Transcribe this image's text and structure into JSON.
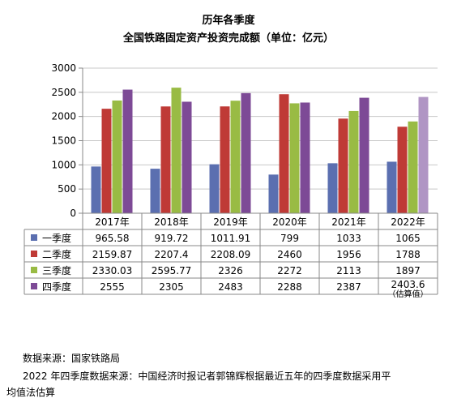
{
  "chart_data": {
    "type": "bar",
    "title": "历年各季度",
    "subtitle": "全国铁路固定资产投资完成额（单位：亿元）",
    "ylim": [
      0,
      3000
    ],
    "yticks": [
      "0",
      "500",
      "1000",
      "1500",
      "2000",
      "2500",
      "3000"
    ],
    "grid": true,
    "categories": [
      "2017年",
      "2018年",
      "2019年",
      "2020年",
      "2021年",
      "2022年"
    ],
    "series": [
      {
        "name": "一季度",
        "color": "#5b6fb0",
        "values": [
          965.58,
          919.72,
          1011.91,
          799,
          1033,
          1065
        ],
        "labels": [
          "965.58",
          "919.72",
          "1011.91",
          "799",
          "1033",
          "1065"
        ]
      },
      {
        "name": "二季度",
        "color": "#bf3a36",
        "values": [
          2159.87,
          2207.4,
          2208.09,
          2460,
          1956,
          1788
        ],
        "labels": [
          "2159.87",
          "2207.4",
          "2208.09",
          "2460",
          "1956",
          "1788"
        ]
      },
      {
        "name": "三季度",
        "color": "#99bb44",
        "values": [
          2330.03,
          2595.77,
          2326,
          2272,
          2113,
          1897
        ],
        "labels": [
          "2330.03",
          "2595.77",
          "2326",
          "2272",
          "2113",
          "1897"
        ]
      },
      {
        "name": "四季度",
        "color": "#7d4a96",
        "estimate_color": "#b095c4",
        "values": [
          2555,
          2305,
          2483,
          2288,
          2387,
          2403.6
        ],
        "labels": [
          "2555",
          "2305",
          "2483",
          "2288",
          "2387",
          "2403.6"
        ]
      }
    ],
    "estimate_note": "（估算值）"
  },
  "footer": {
    "source": "数据来源：国家铁路局",
    "note_line1": "2022 年四季度数据来源：中国经济时报记者郭锦辉根据最近五年的四季度数据采用平",
    "note_line2": "均值法估算"
  }
}
